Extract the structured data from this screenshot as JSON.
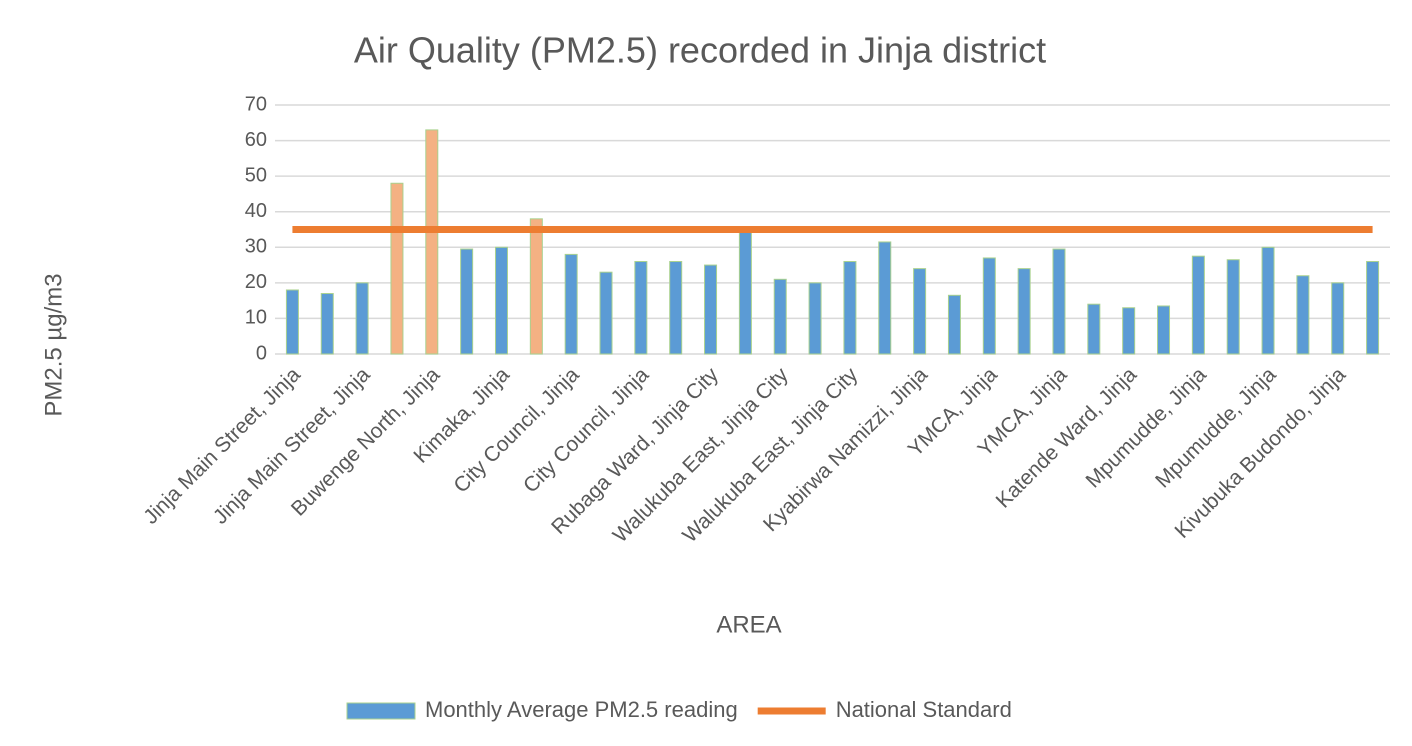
{
  "chart_data": {
    "type": "bar",
    "title": "Air Quality (PM2.5) recorded in Jinja district",
    "x_label": "AREA",
    "y_label": "PM2.5 µg/m3",
    "categories": [
      "Jinja Main Street, Jinja",
      null,
      "Jinja Main Street, Jinja",
      null,
      "Buwenge North,  Jinja",
      null,
      "Kimaka, Jinja",
      null,
      "City Council, Jinja",
      null,
      "City Council, Jinja",
      null,
      "Rubaga Ward, Jinja City",
      null,
      "Walukuba East, Jinja City",
      null,
      "Walukuba East, Jinja City",
      null,
      "Kyabirwa Namizzi, Jinja",
      null,
      "YMCA, Jinja",
      null,
      "YMCA, Jinja",
      null,
      "Katende Ward, Jinja",
      null,
      "Mpumudde, Jinja",
      null,
      "Mpumudde, Jinja",
      null,
      "Kivubuka Budondo, Jinja",
      null
    ],
    "series": [
      {
        "name": "Monthly Average PM2.5 reading",
        "type": "bar",
        "color": "#5b9bd5",
        "colors": [
          "#5b9bd5",
          "#5b9bd5",
          "#5b9bd5",
          "#f4b183",
          "#f4b183",
          "#5b9bd5",
          "#5b9bd5",
          "#f4b183",
          "#5b9bd5",
          "#5b9bd5",
          "#5b9bd5",
          "#5b9bd5",
          "#5b9bd5",
          "#5b9bd5",
          "#5b9bd5",
          "#5b9bd5",
          "#5b9bd5",
          "#5b9bd5",
          "#5b9bd5",
          "#5b9bd5",
          "#5b9bd5",
          "#5b9bd5",
          "#5b9bd5",
          "#5b9bd5",
          "#5b9bd5",
          "#5b9bd5",
          "#5b9bd5",
          "#5b9bd5",
          "#5b9bd5",
          "#5b9bd5",
          "#5b9bd5",
          "#5b9bd5"
        ],
        "values": [
          18,
          17,
          20,
          48,
          63,
          29.5,
          30,
          38,
          28,
          23,
          26,
          26,
          25,
          35,
          21,
          20,
          26,
          31.5,
          24,
          16.5,
          27,
          24,
          29.5,
          14,
          13,
          13.5,
          27.5,
          26.5,
          30,
          22,
          20,
          26
        ]
      },
      {
        "name": "National Standard",
        "type": "line",
        "color": "#ed7d31",
        "values": [
          35,
          35,
          35,
          35,
          35,
          35,
          35,
          35,
          35,
          35,
          35,
          35,
          35,
          35,
          35,
          35,
          35,
          35,
          35,
          35,
          35,
          35,
          35,
          35,
          35,
          35,
          35,
          35,
          35,
          35,
          35,
          35
        ]
      }
    ],
    "ylim": [
      0,
      70
    ],
    "yticks": [
      0,
      10,
      20,
      30,
      40,
      50,
      60,
      70
    ],
    "grid": true
  }
}
